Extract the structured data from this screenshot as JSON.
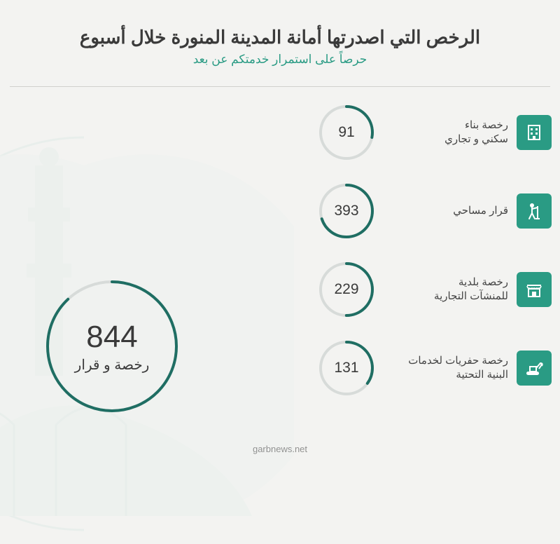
{
  "header": {
    "title": "الرخص التي اصدرتها أمانة المدينة المنورة خلال أسبوع",
    "subtitle": "حرصاً على استمرار خدمتكم عن بعد",
    "title_color": "#3a3a3a",
    "title_fontsize": 26,
    "subtitle_color": "#2a9b84",
    "subtitle_fontsize": 17
  },
  "background_color": "#f3f3f1",
  "bg_art_color": "#cfe3df",
  "total": {
    "value": "844",
    "label": "رخصة و قرار",
    "ring_color": "#1f6e63",
    "ring_track": "#d7dbd9",
    "arc_percent": 0.88,
    "number_fontsize": 44,
    "label_fontsize": 20
  },
  "items": [
    {
      "value": "91",
      "label": "رخصة بناء\nسكني و تجاري",
      "icon": "building",
      "icon_bg": "#2a9b84",
      "ring_color": "#1f6e63",
      "ring_track": "#d7dbd9",
      "arc_percent": 0.28
    },
    {
      "value": "393",
      "label": "قرار مساحي",
      "icon": "surveyor",
      "icon_bg": "#2a9b84",
      "ring_color": "#1f6e63",
      "ring_track": "#d7dbd9",
      "arc_percent": 0.7
    },
    {
      "value": "229",
      "label": "رخصة بلدية\nللمنشآت التجارية",
      "icon": "shop",
      "icon_bg": "#2a9b84",
      "ring_color": "#1f6e63",
      "ring_track": "#d7dbd9",
      "arc_percent": 0.5
    },
    {
      "value": "131",
      "label": "رخصة حفريات لخدمات\nالبنية التحتية",
      "icon": "excavator",
      "icon_bg": "#2a9b84",
      "ring_color": "#1f6e63",
      "ring_track": "#d7dbd9",
      "arc_percent": 0.35
    }
  ],
  "watermark": "garbnews.net",
  "styling": {
    "item_label_fontsize": 15,
    "item_value_fontsize": 21,
    "ring_stroke_width_small": 4,
    "ring_stroke_width_large": 4,
    "icon_fg": "#ffffff"
  }
}
